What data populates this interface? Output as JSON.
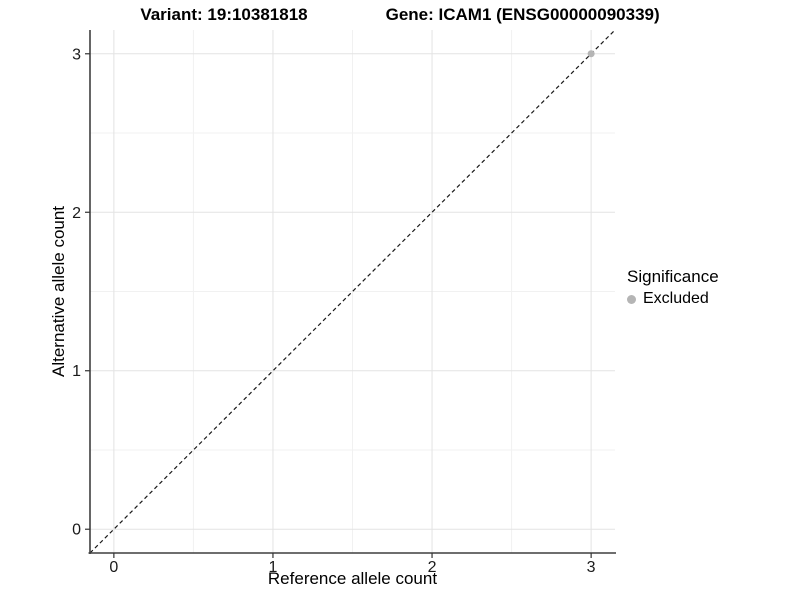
{
  "title": {
    "variant": "Variant: 19:10381818",
    "gene": "Gene: ICAM1 (ENSG00000090339)"
  },
  "legend": {
    "title": "Significance",
    "items": [
      {
        "label": "Excluded",
        "color": "#b5b5b5"
      }
    ]
  },
  "colors": {
    "background": "#ffffff",
    "grid_major": "#e3e3e3",
    "grid_minor": "#f1f1f1",
    "axis_line": "#3f3f3f",
    "tick_mark": "#333333",
    "tick_text": "#1a1a1a",
    "identity_line": "#1a1a1a",
    "excluded_point": "#b5b5b5"
  },
  "chart_data": {
    "type": "scatter",
    "title": "Variant: 19:10381818    Gene: ICAM1 (ENSG00000090339)",
    "xlabel": "Reference allele count",
    "ylabel": "Alternative allele count",
    "xlim": [
      -0.15,
      3.15
    ],
    "ylim": [
      -0.15,
      3.15
    ],
    "xticks": [
      0,
      1,
      2,
      3
    ],
    "yticks": [
      0,
      1,
      2,
      3
    ],
    "x_minor_ticks": [
      0.5,
      1.5,
      2.5
    ],
    "y_minor_ticks": [
      0.5,
      1.5,
      2.5
    ],
    "grid": "major+minor",
    "legend_position": "right",
    "series": [
      {
        "name": "Excluded",
        "points": [
          {
            "x": 3,
            "y": 3
          }
        ]
      }
    ],
    "reference_line": {
      "equation": "y = x",
      "style": "dashed"
    }
  }
}
